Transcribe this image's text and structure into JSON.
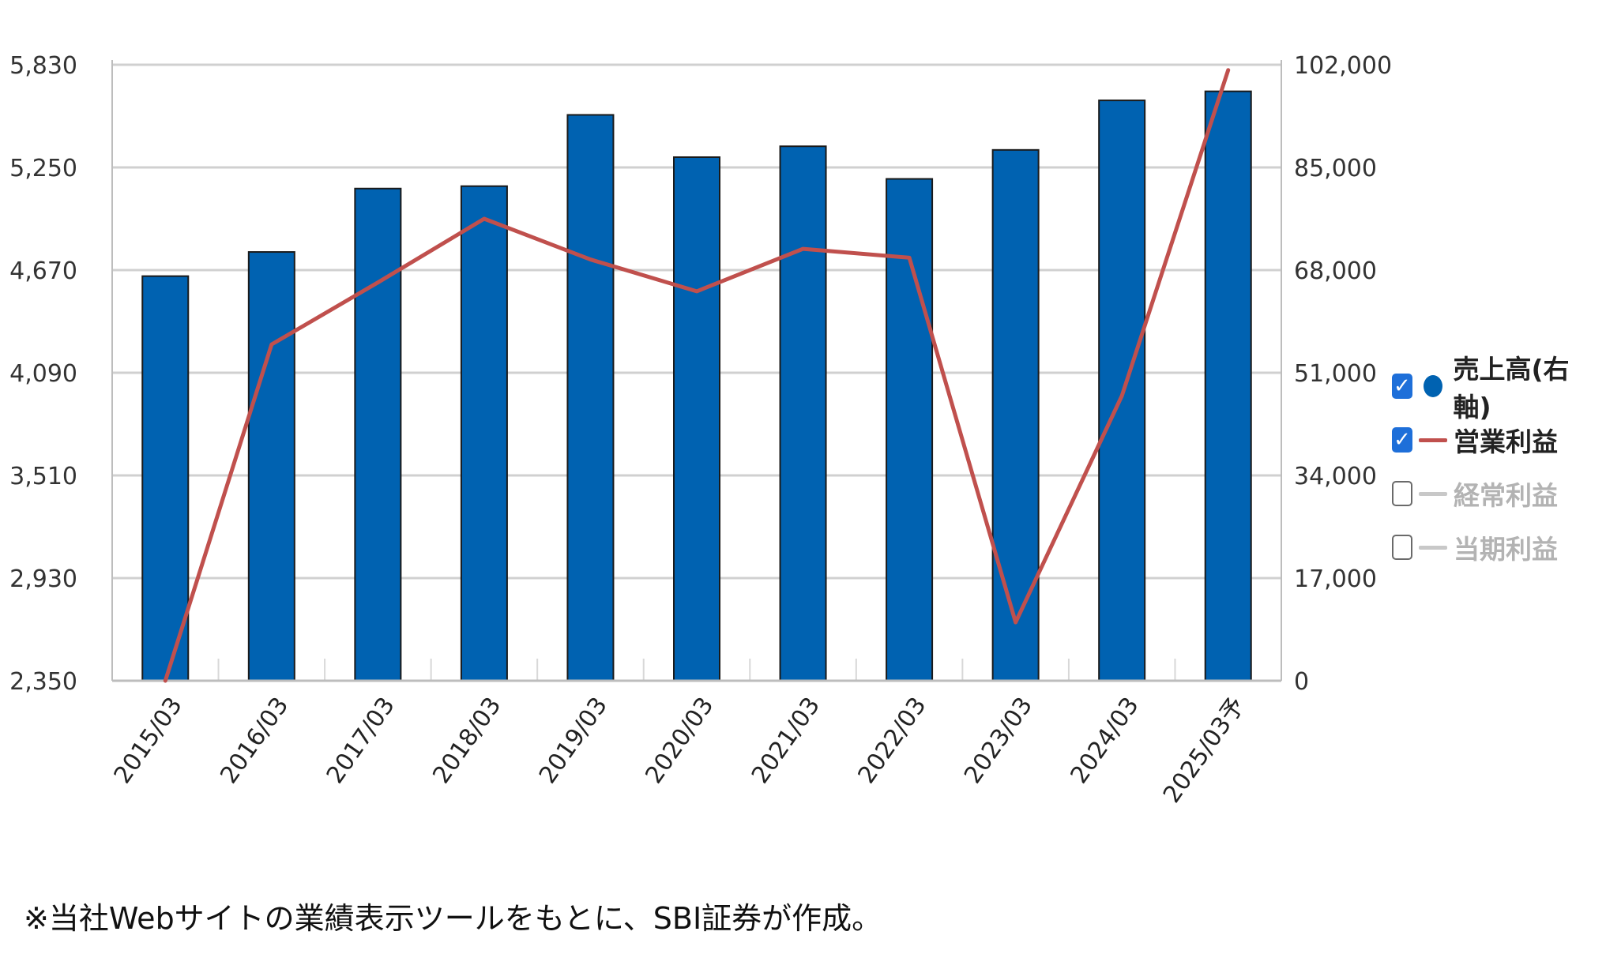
{
  "chart_data": {
    "type": "bar",
    "categories": [
      "2015/03",
      "2016/03",
      "2017/03",
      "2018/03",
      "2019/03",
      "2020/03",
      "2021/03",
      "2022/03",
      "2023/03",
      "2024/03",
      "2025/03予"
    ],
    "series": [
      {
        "name": "売上高(右軸)",
        "type": "bar",
        "axis": "right",
        "values": [
          67000,
          71000,
          81500,
          81900,
          93700,
          86700,
          88500,
          83100,
          87900,
          96100,
          97600
        ]
      },
      {
        "name": "営業利益",
        "type": "line",
        "axis": "left",
        "values": [
          2350,
          4250,
          4600,
          4960,
          4730,
          4550,
          4790,
          4740,
          2680,
          3960,
          5800
        ]
      }
    ],
    "y_left": {
      "min": 2350,
      "max": 5830,
      "ticks": [
        "2,350",
        "2,930",
        "3,510",
        "4,090",
        "4,670",
        "5,250",
        "5,830"
      ]
    },
    "y_right": {
      "min": 0,
      "max": 102000,
      "ticks": [
        "0",
        "17,000",
        "34,000",
        "51,000",
        "68,000",
        "85,000",
        "102,000"
      ]
    },
    "grid": true,
    "legend_position": "right",
    "colors": {
      "bar": "#0062b1",
      "line": "#c0504d",
      "grid": "#d0d0d0"
    }
  },
  "legend": [
    {
      "label": "売上高(右軸)",
      "checked": true,
      "symbol": "dot",
      "color": "#0062b1",
      "check": "✓"
    },
    {
      "label": "営業利益",
      "checked": true,
      "symbol": "line",
      "color": "#c0504d",
      "check": "✓"
    },
    {
      "label": "経常利益",
      "checked": false,
      "symbol": "line",
      "color": "#c8c8c8",
      "check": ""
    },
    {
      "label": "当期利益",
      "checked": false,
      "symbol": "line",
      "color": "#c8c8c8",
      "check": ""
    }
  ],
  "footnote": "※当社Webサイトの業績表示ツールをもとに、SBI証券が作成。"
}
